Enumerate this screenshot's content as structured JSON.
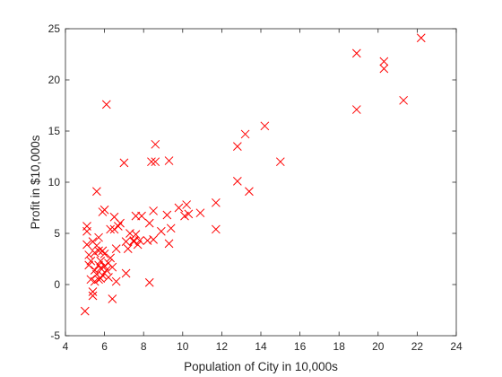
{
  "chart_data": {
    "type": "scatter",
    "title": "",
    "xlabel": "Population of City in 10,000s",
    "ylabel": "Profit in $10,000s",
    "xlim": [
      4,
      24
    ],
    "ylim": [
      -5,
      25
    ],
    "xticks": [
      4,
      6,
      8,
      10,
      12,
      14,
      16,
      18,
      20,
      22,
      24
    ],
    "yticks": [
      -5,
      0,
      5,
      10,
      15,
      20,
      25
    ],
    "grid": false,
    "box": true,
    "marker": "x",
    "color": "#ff0000",
    "series": [
      {
        "points": [
          [
            5.0,
            -2.6
          ],
          [
            5.1,
            5.7
          ],
          [
            5.1,
            5.2
          ],
          [
            5.1,
            3.9
          ],
          [
            5.2,
            2.9
          ],
          [
            5.2,
            1.9
          ],
          [
            5.3,
            0.5
          ],
          [
            5.3,
            2.3
          ],
          [
            5.4,
            4.2
          ],
          [
            5.4,
            -0.7
          ],
          [
            5.4,
            -1.1
          ],
          [
            5.5,
            1.4
          ],
          [
            5.5,
            0.3
          ],
          [
            5.5,
            3.1
          ],
          [
            5.6,
            1.0
          ],
          [
            5.6,
            3.8
          ],
          [
            5.6,
            9.1
          ],
          [
            5.7,
            3.3
          ],
          [
            5.7,
            4.6
          ],
          [
            5.7,
            0.5
          ],
          [
            5.7,
            1.9
          ],
          [
            5.8,
            0.6
          ],
          [
            5.8,
            2.3
          ],
          [
            5.8,
            1.6
          ],
          [
            5.9,
            3.3
          ],
          [
            5.9,
            0.9
          ],
          [
            5.9,
            7.1
          ],
          [
            6.0,
            3.0
          ],
          [
            6.0,
            1.8
          ],
          [
            6.0,
            7.3
          ],
          [
            6.1,
            17.6
          ],
          [
            6.1,
            1.4
          ],
          [
            6.2,
            2.1
          ],
          [
            6.2,
            0.7
          ],
          [
            6.3,
            5.4
          ],
          [
            6.3,
            2.6
          ],
          [
            6.4,
            1.7
          ],
          [
            6.4,
            -1.4
          ],
          [
            6.5,
            5.4
          ],
          [
            6.5,
            6.6
          ],
          [
            6.6,
            3.5
          ],
          [
            6.6,
            0.3
          ],
          [
            6.7,
            5.7
          ],
          [
            6.8,
            6.0
          ],
          [
            7.0,
            11.9
          ],
          [
            7.1,
            4.2
          ],
          [
            7.1,
            1.1
          ],
          [
            7.2,
            3.5
          ],
          [
            7.3,
            5.0
          ],
          [
            7.5,
            4.3
          ],
          [
            7.5,
            4.2
          ],
          [
            7.6,
            6.7
          ],
          [
            7.6,
            4.9
          ],
          [
            7.7,
            3.9
          ],
          [
            7.8,
            4.3
          ],
          [
            7.9,
            6.7
          ],
          [
            8.2,
            4.3
          ],
          [
            8.3,
            6.0
          ],
          [
            8.3,
            0.2
          ],
          [
            8.4,
            12.0
          ],
          [
            8.5,
            7.2
          ],
          [
            8.5,
            4.4
          ],
          [
            8.6,
            13.7
          ],
          [
            8.6,
            12.0
          ],
          [
            8.9,
            5.2
          ],
          [
            9.2,
            6.8
          ],
          [
            9.3,
            12.1
          ],
          [
            9.3,
            4.0
          ],
          [
            9.4,
            5.5
          ],
          [
            9.8,
            7.5
          ],
          [
            10.1,
            6.7
          ],
          [
            10.2,
            7.8
          ],
          [
            10.3,
            6.9
          ],
          [
            10.9,
            7.0
          ],
          [
            11.7,
            8.0
          ],
          [
            11.7,
            5.4
          ],
          [
            12.8,
            13.5
          ],
          [
            12.8,
            10.1
          ],
          [
            13.2,
            14.7
          ],
          [
            13.4,
            9.1
          ],
          [
            14.2,
            15.5
          ],
          [
            15.0,
            12.0
          ],
          [
            18.9,
            22.6
          ],
          [
            18.9,
            17.1
          ],
          [
            20.3,
            21.8
          ],
          [
            20.3,
            21.1
          ],
          [
            21.3,
            18.0
          ],
          [
            22.2,
            24.1
          ]
        ]
      }
    ]
  }
}
